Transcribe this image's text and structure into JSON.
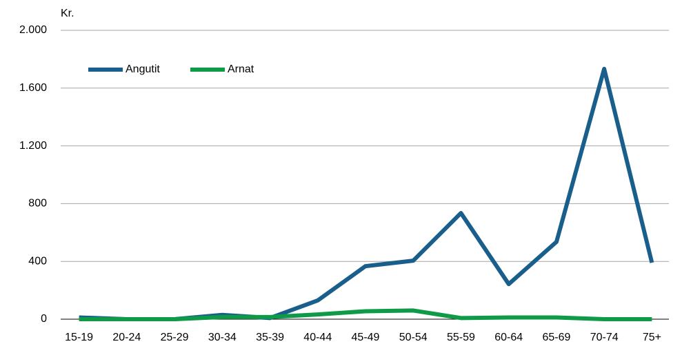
{
  "chart_data": {
    "type": "line",
    "y_label": "Kr.",
    "categories": [
      "15-19",
      "20-24",
      "25-29",
      "30-34",
      "35-39",
      "40-44",
      "45-49",
      "50-54",
      "55-59",
      "60-64",
      "65-69",
      "70-74",
      "75+"
    ],
    "series": [
      {
        "name": "Angutit",
        "color": "#1a5f8c",
        "values": [
          12,
          0,
          0,
          30,
          8,
          130,
          367,
          405,
          735,
          243,
          535,
          1733,
          391
        ]
      },
      {
        "name": "Arnat",
        "color": "#0f9a48",
        "values": [
          0,
          0,
          0,
          15,
          15,
          33,
          55,
          60,
          8,
          12,
          12,
          0,
          0
        ]
      }
    ],
    "ylim": [
      0,
      2000
    ],
    "yticks": [
      0,
      400,
      800,
      {
        "value": 1200,
        "label": "1.200"
      },
      {
        "value": 1600,
        "label": "1.600"
      },
      {
        "value": 2000,
        "label": "2.000"
      }
    ],
    "grid": true,
    "legend": "top-left"
  }
}
